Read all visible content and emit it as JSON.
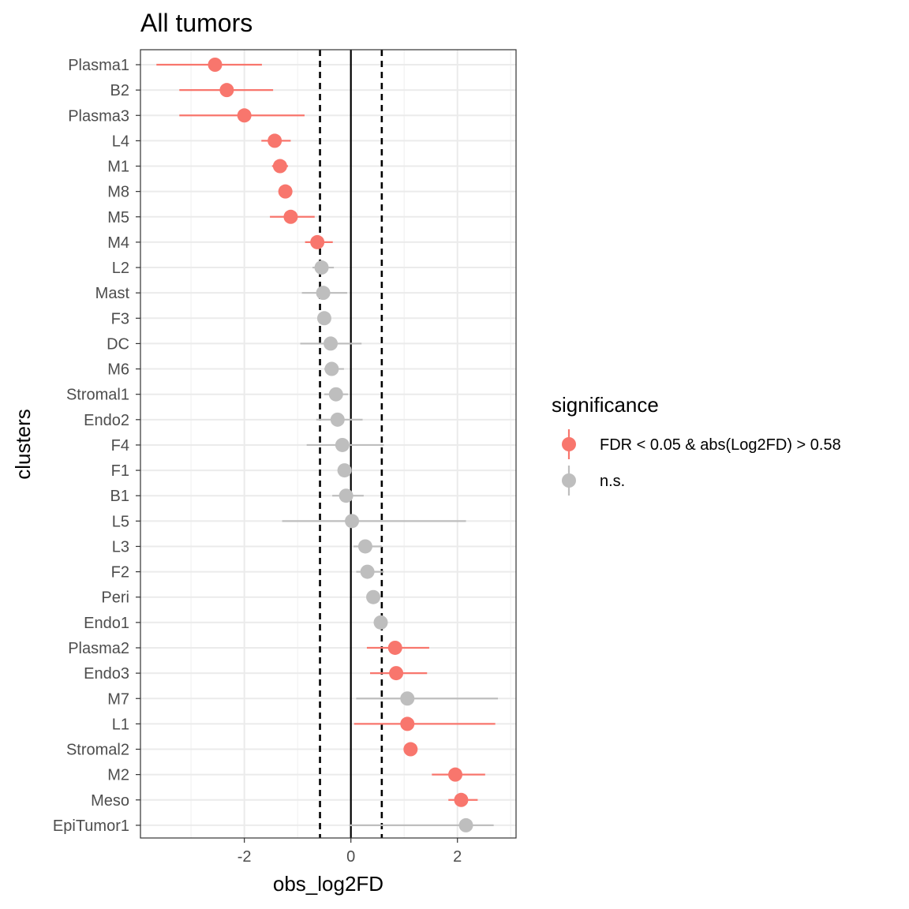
{
  "chart_data": {
    "type": "scatter",
    "title": "All tumors",
    "xlabel": "obs_log2FD",
    "ylabel": "clusters",
    "xlim": [
      -3.95,
      3.1
    ],
    "xticks": [
      -2,
      0,
      2
    ],
    "xtick_labels": [
      "-2",
      "0",
      "2"
    ],
    "vlines": {
      "solid": 0,
      "dashed": [
        -0.58,
        0.58
      ]
    },
    "grid": true,
    "legend": {
      "title": "significance",
      "position": "right",
      "entries": [
        {
          "label": "FDR < 0.05 & abs(Log2FD) > 0.58",
          "color": "#F8766D"
        },
        {
          "label": "n.s.",
          "color": "#BEBEBE"
        }
      ]
    },
    "colors": {
      "sig": "#F8766D",
      "ns": "#BEBEBE"
    },
    "points": [
      {
        "cluster": "Plasma1",
        "x": -2.55,
        "lo": -3.65,
        "hi": -1.67,
        "sig": true
      },
      {
        "cluster": "B2",
        "x": -2.33,
        "lo": -3.22,
        "hi": -1.46,
        "sig": true
      },
      {
        "cluster": "Plasma3",
        "x": -2.0,
        "lo": -3.22,
        "hi": -0.87,
        "sig": true
      },
      {
        "cluster": "L4",
        "x": -1.43,
        "lo": -1.68,
        "hi": -1.13,
        "sig": true
      },
      {
        "cluster": "M1",
        "x": -1.33,
        "lo": -1.48,
        "hi": -1.18,
        "sig": true
      },
      {
        "cluster": "M8",
        "x": -1.23,
        "lo": -1.33,
        "hi": -1.13,
        "sig": true
      },
      {
        "cluster": "M5",
        "x": -1.13,
        "lo": -1.52,
        "hi": -0.68,
        "sig": true
      },
      {
        "cluster": "M4",
        "x": -0.63,
        "lo": -0.86,
        "hi": -0.34,
        "sig": true
      },
      {
        "cluster": "L2",
        "x": -0.55,
        "lo": -0.72,
        "hi": -0.32,
        "sig": false
      },
      {
        "cluster": "Mast",
        "x": -0.52,
        "lo": -0.92,
        "hi": -0.07,
        "sig": false
      },
      {
        "cluster": "F3",
        "x": -0.5,
        "lo": -0.6,
        "hi": -0.4,
        "sig": false
      },
      {
        "cluster": "DC",
        "x": -0.38,
        "lo": -0.95,
        "hi": 0.2,
        "sig": false
      },
      {
        "cluster": "M6",
        "x": -0.36,
        "lo": -0.5,
        "hi": -0.13,
        "sig": false
      },
      {
        "cluster": "Stromal1",
        "x": -0.28,
        "lo": -0.5,
        "hi": -0.05,
        "sig": false
      },
      {
        "cluster": "Endo2",
        "x": -0.25,
        "lo": -0.65,
        "hi": 0.22,
        "sig": false
      },
      {
        "cluster": "F4",
        "x": -0.16,
        "lo": -0.83,
        "hi": 0.62,
        "sig": false
      },
      {
        "cluster": "F1",
        "x": -0.12,
        "lo": -0.2,
        "hi": -0.04,
        "sig": false
      },
      {
        "cluster": "B1",
        "x": -0.09,
        "lo": -0.35,
        "hi": 0.24,
        "sig": false
      },
      {
        "cluster": "L5",
        "x": 0.02,
        "lo": -1.29,
        "hi": 2.16,
        "sig": false
      },
      {
        "cluster": "L3",
        "x": 0.27,
        "lo": 0.05,
        "hi": 0.58,
        "sig": false
      },
      {
        "cluster": "F2",
        "x": 0.31,
        "lo": 0.1,
        "hi": 0.62,
        "sig": false
      },
      {
        "cluster": "Peri",
        "x": 0.42,
        "lo": 0.32,
        "hi": 0.52,
        "sig": false
      },
      {
        "cluster": "Endo1",
        "x": 0.56,
        "lo": 0.46,
        "hi": 0.66,
        "sig": false
      },
      {
        "cluster": "Plasma2",
        "x": 0.83,
        "lo": 0.3,
        "hi": 1.47,
        "sig": true
      },
      {
        "cluster": "Endo3",
        "x": 0.85,
        "lo": 0.36,
        "hi": 1.43,
        "sig": true
      },
      {
        "cluster": "M7",
        "x": 1.06,
        "lo": 0.1,
        "hi": 2.76,
        "sig": false
      },
      {
        "cluster": "L1",
        "x": 1.06,
        "lo": 0.06,
        "hi": 2.71,
        "sig": true
      },
      {
        "cluster": "Stromal2",
        "x": 1.12,
        "lo": 1.02,
        "hi": 1.22,
        "sig": true
      },
      {
        "cluster": "M2",
        "x": 1.96,
        "lo": 1.52,
        "hi": 2.52,
        "sig": true
      },
      {
        "cluster": "Meso",
        "x": 2.07,
        "lo": 1.83,
        "hi": 2.38,
        "sig": true
      },
      {
        "cluster": "EpiTumor1",
        "x": 2.16,
        "lo": -0.03,
        "hi": 2.68,
        "sig": false
      }
    ]
  }
}
